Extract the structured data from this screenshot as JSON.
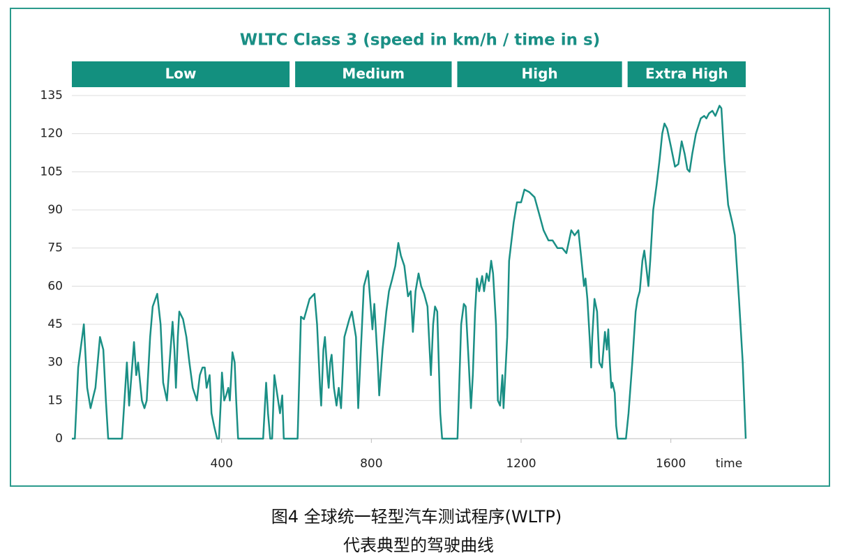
{
  "chart_data": {
    "type": "line",
    "title": "WLTC Class 3 (speed in km/h / time in s)",
    "xlabel": "time",
    "color": "#1a8f85",
    "band_color": "#13907f",
    "grid": true,
    "phases": [
      {
        "label": "Low",
        "start": 0,
        "end": 589
      },
      {
        "label": "Medium",
        "start": 589,
        "end": 1022
      },
      {
        "label": "High",
        "start": 1022,
        "end": 1477
      },
      {
        "label": "Extra High",
        "start": 1477,
        "end": 1800
      }
    ],
    "xlim": [
      0,
      1800
    ],
    "xticks": [
      400,
      800,
      1200,
      1600
    ],
    "ylim": [
      0,
      135
    ],
    "yticks": [
      0,
      15,
      30,
      45,
      60,
      75,
      90,
      105,
      120,
      135
    ],
    "x": [
      0,
      8,
      17,
      32,
      41,
      50,
      58,
      63,
      75,
      84,
      91,
      97,
      134,
      147,
      153,
      162,
      166,
      172,
      177,
      187,
      194,
      200,
      209,
      216,
      228,
      237,
      244,
      254,
      261,
      269,
      274,
      278,
      283,
      287,
      297,
      306,
      314,
      323,
      334,
      342,
      349,
      355,
      360,
      368,
      373,
      380,
      388,
      393,
      398,
      401,
      407,
      412,
      418,
      422,
      429,
      435,
      439,
      444,
      511,
      519,
      524,
      530,
      535,
      541,
      551,
      556,
      562,
      566,
      603,
      612,
      620,
      635,
      648,
      655,
      663,
      666,
      672,
      676,
      683,
      686,
      690,
      694,
      700,
      707,
      713,
      719,
      728,
      741,
      748,
      759,
      765,
      772,
      780,
      791,
      803,
      808,
      817,
      821,
      830,
      840,
      847,
      856,
      864,
      872,
      879,
      888,
      898,
      905,
      911,
      918,
      926,
      933,
      941,
      950,
      959,
      965,
      970,
      976,
      984,
      989,
      1030,
      1040,
      1047,
      1052,
      1060,
      1066,
      1071,
      1077,
      1082,
      1088,
      1096,
      1101,
      1108,
      1114,
      1120,
      1125,
      1133,
      1138,
      1144,
      1150,
      1153,
      1163,
      1168,
      1180,
      1189,
      1200,
      1209,
      1222,
      1236,
      1249,
      1260,
      1273,
      1284,
      1297,
      1310,
      1321,
      1334,
      1343,
      1353,
      1360,
      1368,
      1372,
      1377,
      1383,
      1387,
      1390,
      1396,
      1403,
      1409,
      1416,
      1424,
      1429,
      1433,
      1437,
      1441,
      1444,
      1450,
      1454,
      1458,
      1480,
      1487,
      1497,
      1506,
      1511,
      1517,
      1524,
      1529,
      1534,
      1540,
      1545,
      1553,
      1562,
      1570,
      1577,
      1583,
      1590,
      1600,
      1611,
      1620,
      1629,
      1637,
      1644,
      1650,
      1657,
      1667,
      1680,
      1689,
      1695,
      1702,
      1711,
      1719,
      1730,
      1735,
      1743,
      1753,
      1764,
      1771,
      1782,
      1792,
      1800
    ],
    "values": [
      0,
      0,
      28,
      45,
      20,
      12,
      17,
      20,
      40,
      35,
      15,
      0,
      0,
      30,
      13,
      30,
      38,
      25,
      30,
      15,
      12,
      15,
      40,
      52,
      57,
      45,
      22,
      15,
      30,
      46,
      35,
      20,
      40,
      50,
      47,
      40,
      30,
      20,
      15,
      25,
      28,
      28,
      20,
      25,
      10,
      5,
      0,
      0,
      15,
      26,
      15,
      17,
      20,
      15,
      34,
      30,
      15,
      0,
      0,
      22,
      10,
      0,
      0,
      25,
      15,
      10,
      17,
      0,
      0,
      48,
      47,
      55,
      57,
      45,
      20,
      13,
      35,
      40,
      25,
      20,
      30,
      33,
      20,
      13,
      20,
      12,
      40,
      47,
      50,
      40,
      12,
      35,
      60,
      66,
      43,
      53,
      30,
      17,
      35,
      50,
      58,
      63,
      68,
      77,
      72,
      68,
      56,
      58,
      42,
      58,
      65,
      60,
      57,
      52,
      25,
      45,
      52,
      50,
      10,
      0,
      0,
      45,
      53,
      52,
      30,
      12,
      25,
      50,
      63,
      58,
      64,
      58,
      65,
      62,
      70,
      65,
      45,
      15,
      13,
      25,
      12,
      40,
      70,
      85,
      93,
      93,
      98,
      97,
      95,
      88,
      82,
      78,
      78,
      75,
      75,
      73,
      82,
      80,
      82,
      72,
      60,
      63,
      55,
      40,
      28,
      40,
      55,
      50,
      30,
      28,
      42,
      35,
      43,
      30,
      20,
      22,
      18,
      5,
      0,
      0,
      10,
      30,
      50,
      55,
      58,
      70,
      74,
      68,
      60,
      70,
      90,
      100,
      110,
      120,
      124,
      122,
      115,
      107,
      108,
      117,
      112,
      106,
      105,
      112,
      120,
      126,
      127,
      126,
      128,
      129,
      127,
      131,
      130,
      110,
      92,
      85,
      80,
      55,
      30,
      0
    ]
  },
  "caption": [
    "图4 全球统一轻型汽车测试程序(WLTP)",
    "代表典型的驾驶曲线"
  ]
}
